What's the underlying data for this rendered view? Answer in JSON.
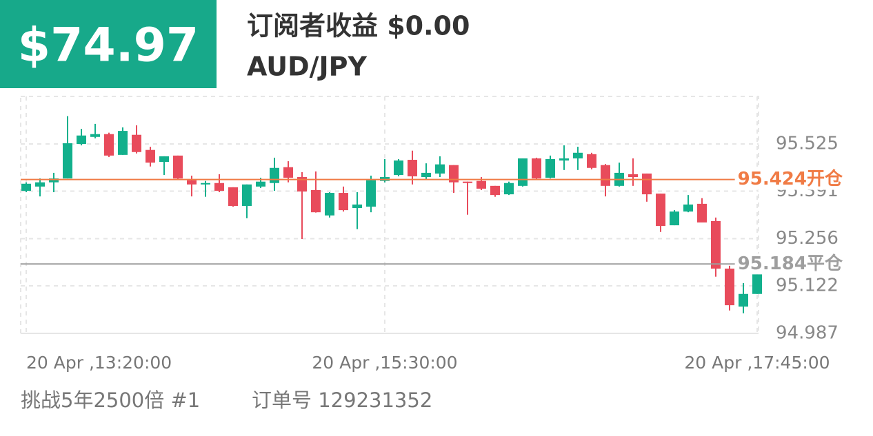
{
  "header": {
    "profit": "$74.97",
    "subtitle": "订阅者收益 $0.00",
    "symbol": "AUD/JPY"
  },
  "chart_data": {
    "type": "candlestick",
    "categories": [
      "20 Apr ,13:20:00",
      null,
      null,
      null,
      null,
      null,
      null,
      null,
      null,
      null,
      null,
      null,
      null,
      null,
      null,
      null,
      null,
      null,
      null,
      null,
      null,
      null,
      null,
      null,
      null,
      null,
      "20 Apr ,15:30:00",
      null,
      null,
      null,
      null,
      null,
      null,
      null,
      null,
      null,
      null,
      null,
      null,
      null,
      null,
      null,
      null,
      null,
      null,
      null,
      null,
      null,
      null,
      null,
      null,
      null,
      null,
      "20 Apr ,17:45:00"
    ],
    "open": [
      95.392,
      95.404,
      95.416,
      95.427,
      95.525,
      95.545,
      95.553,
      95.494,
      95.551,
      95.508,
      95.474,
      95.492,
      95.422,
      95.41,
      95.414,
      95.402,
      95.349,
      95.404,
      95.414,
      95.459,
      95.431,
      95.394,
      95.322,
      95.386,
      95.343,
      95.347,
      95.42,
      95.437,
      95.48,
      95.431,
      95.441,
      95.465,
      95.418,
      95.42,
      95.406,
      95.382,
      95.406,
      95.484,
      95.429,
      95.478,
      95.484,
      95.496,
      95.465,
      95.406,
      95.439,
      95.441,
      95.384,
      95.294,
      95.333,
      95.355,
      95.306,
      95.171,
      95.063,
      95.099
    ],
    "high": [
      95.416,
      95.427,
      95.443,
      95.604,
      95.568,
      95.582,
      95.557,
      95.572,
      95.578,
      95.517,
      95.49,
      95.492,
      95.435,
      95.42,
      95.439,
      95.402,
      95.41,
      95.429,
      95.486,
      95.476,
      95.445,
      95.447,
      95.388,
      95.404,
      95.388,
      95.435,
      95.482,
      95.482,
      95.506,
      95.47,
      95.49,
      95.465,
      95.418,
      95.431,
      95.406,
      95.418,
      95.484,
      95.486,
      95.492,
      95.521,
      95.517,
      95.5,
      95.468,
      95.472,
      95.484,
      95.441,
      95.384,
      95.337,
      95.38,
      95.371,
      95.316,
      95.179,
      95.13,
      95.155
    ],
    "low": [
      95.388,
      95.376,
      95.388,
      95.427,
      95.521,
      95.541,
      95.488,
      95.494,
      95.498,
      95.461,
      95.437,
      95.425,
      95.376,
      95.375,
      95.388,
      95.347,
      95.314,
      95.4,
      95.392,
      95.416,
      95.255,
      95.33,
      95.316,
      95.333,
      95.283,
      95.331,
      95.416,
      95.433,
      95.41,
      95.425,
      95.431,
      95.386,
      95.324,
      95.394,
      95.375,
      95.38,
      95.404,
      95.425,
      95.427,
      95.451,
      95.451,
      95.453,
      95.376,
      95.404,
      95.406,
      95.361,
      95.275,
      95.294,
      95.331,
      95.302,
      95.148,
      95.052,
      95.044,
      95.099
    ],
    "close": [
      95.412,
      95.416,
      95.427,
      95.527,
      95.549,
      95.553,
      95.492,
      95.562,
      95.502,
      95.472,
      95.49,
      95.427,
      95.41,
      95.414,
      95.392,
      95.349,
      95.41,
      95.418,
      95.457,
      95.429,
      95.39,
      95.331,
      95.386,
      95.337,
      95.353,
      95.422,
      95.431,
      95.478,
      95.433,
      95.443,
      95.467,
      95.416,
      95.414,
      95.398,
      95.38,
      95.414,
      95.484,
      95.427,
      95.482,
      95.484,
      95.5,
      95.457,
      95.406,
      95.443,
      95.431,
      95.382,
      95.292,
      95.333,
      95.353,
      95.302,
      95.171,
      95.067,
      95.099,
      95.155
    ],
    "up_color": "#12b08c",
    "down_color": "#e84b5b",
    "ylim": [
      94.987,
      95.66
    ],
    "yticks": [
      95.525,
      95.391,
      95.256,
      95.122,
      94.987
    ],
    "grid": true,
    "price_lines": [
      {
        "value": 95.424,
        "label": "95.424开仓",
        "color": "#f07b45"
      },
      {
        "value": 95.184,
        "label": "95.184平仓",
        "color": "#9e9e9e"
      }
    ]
  },
  "footer": {
    "challenge": "挑战5年2500倍 #1",
    "order": "订单号 129231352"
  }
}
